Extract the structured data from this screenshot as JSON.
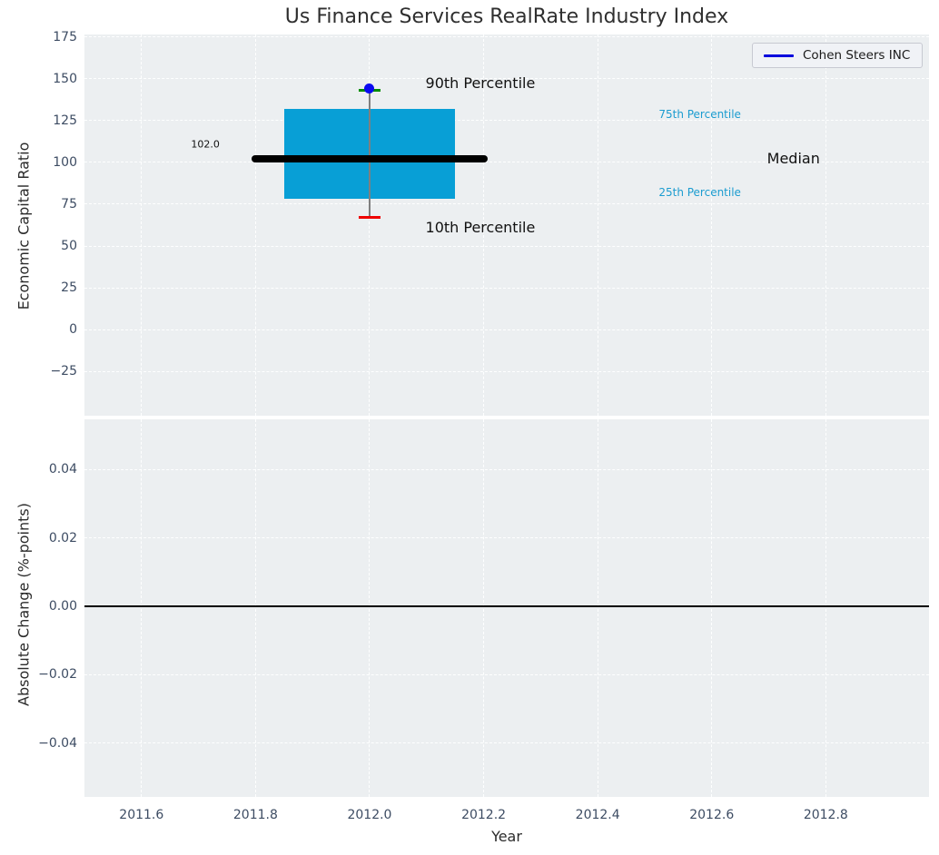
{
  "title": "Us Finance Services RealRate Industry Index",
  "legend": {
    "label": "Cohen Steers INC",
    "line_color": "#0000dd"
  },
  "colors": {
    "plot_background": "#eceff1",
    "grid": "#ffffff",
    "box_fill": "#089fd6",
    "median_line": "#000000",
    "whisker": "#7f7f7f",
    "p90_cap": "#008d00",
    "p10_cap": "#ef0000",
    "company_dot": "#0a0af0",
    "tick_label": "#3d4c63",
    "percentile_label": "#1b9cd0",
    "annotation_text": "#111111",
    "zero_line": "#000000"
  },
  "chart_data": [
    {
      "type": "box",
      "title": "Us Finance Services RealRate Industry Index",
      "ylabel": "Economic Capital Ratio",
      "xlabel": "",
      "xlim": [
        2011.5,
        2012.981
      ],
      "ylim": [
        -51.6,
        176.6
      ],
      "grid": true,
      "legend_entries": [
        "Cohen Steers INC"
      ],
      "legend_position": "upper right",
      "yticks": [
        {
          "v": 175,
          "label": "175"
        },
        {
          "v": 150,
          "label": "150"
        },
        {
          "v": 125,
          "label": "125"
        },
        {
          "v": 100,
          "label": "100"
        },
        {
          "v": 75,
          "label": "75"
        },
        {
          "v": 50,
          "label": "50"
        },
        {
          "v": 25,
          "label": "25"
        },
        {
          "v": 0,
          "label": "0"
        },
        {
          "v": -25,
          "label": "−25"
        }
      ],
      "xticks": [
        {
          "v": 2011.6,
          "label": "2011.6"
        },
        {
          "v": 2011.8,
          "label": "2011.8"
        },
        {
          "v": 2012.0,
          "label": "2012.0"
        },
        {
          "v": 2012.2,
          "label": "2012.2"
        },
        {
          "v": 2012.4,
          "label": "2012.4"
        },
        {
          "v": 2012.6,
          "label": "2012.6"
        },
        {
          "v": 2012.8,
          "label": "2012.8"
        }
      ],
      "box": {
        "x": 2012.0,
        "p10": 67,
        "p25": 78,
        "median": 102.0,
        "p75": 132,
        "p90": 143,
        "box_halfwidth": 0.15,
        "median_halfwidth": 0.2,
        "company_name": "Cohen Steers INC",
        "company_value": 143
      },
      "annotations": [
        {
          "text": "90th Percentile",
          "x": 2012.098,
          "y": 147,
          "size": 16,
          "color": "#111111"
        },
        {
          "text": "10th Percentile",
          "x": 2012.098,
          "y": 61,
          "size": 16,
          "color": "#111111"
        },
        {
          "text": "Median",
          "x": 2012.697,
          "y": 102,
          "size": 16,
          "color": "#111111"
        },
        {
          "text": "102.0",
          "x": 2011.687,
          "y": 111,
          "size": 11,
          "color": "#111111"
        },
        {
          "text": "75th Percentile",
          "x": 2012.507,
          "y": 129,
          "size": 12,
          "color": "#1b9cd0"
        },
        {
          "text": "25th Percentile",
          "x": 2012.507,
          "y": 82,
          "size": 12,
          "color": "#1b9cd0"
        }
      ]
    },
    {
      "type": "line",
      "ylabel": "Absolute Change (%-points)",
      "xlabel": "Year",
      "xlim": [
        2011.5,
        2012.981
      ],
      "ylim": [
        -0.0558,
        0.0547
      ],
      "grid": true,
      "zero_line": 0.0,
      "series": [],
      "yticks": [
        {
          "v": 0.04,
          "label": "0.04"
        },
        {
          "v": 0.02,
          "label": "0.02"
        },
        {
          "v": 0.0,
          "label": "0.00"
        },
        {
          "v": -0.02,
          "label": "−0.02"
        },
        {
          "v": -0.04,
          "label": "−0.04"
        }
      ],
      "xticks": [
        {
          "v": 2011.6,
          "label": "2011.6"
        },
        {
          "v": 2011.8,
          "label": "2011.8"
        },
        {
          "v": 2012.0,
          "label": "2012.0"
        },
        {
          "v": 2012.2,
          "label": "2012.2"
        },
        {
          "v": 2012.4,
          "label": "2012.4"
        },
        {
          "v": 2012.6,
          "label": "2012.6"
        },
        {
          "v": 2012.8,
          "label": "2012.8"
        }
      ]
    }
  ]
}
